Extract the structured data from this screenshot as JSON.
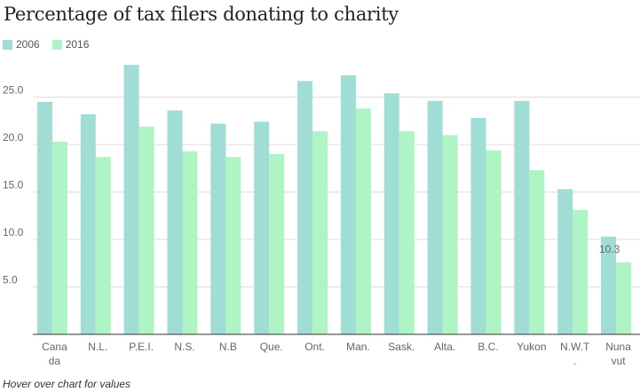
{
  "title": "Percentage of tax filers donating to charity",
  "legend": [
    {
      "name": "2006",
      "color": "#a0ddd4"
    },
    {
      "name": "2016",
      "color": "#aef4c4"
    }
  ],
  "note": "Hover over chart for values",
  "chart_data": {
    "type": "bar",
    "title": "Percentage of tax filers donating to charity",
    "categories": [
      [
        "Cana",
        "da"
      ],
      [
        "N.L."
      ],
      [
        "P.E.I."
      ],
      [
        "N.S."
      ],
      [
        "N.B"
      ],
      [
        "Que."
      ],
      [
        "Ont."
      ],
      [
        "Man."
      ],
      [
        "Sask."
      ],
      [
        "Alta."
      ],
      [
        "B.C."
      ],
      [
        "Yukon"
      ],
      [
        "N.W.T",
        "."
      ],
      [
        "Nuna",
        "vut"
      ]
    ],
    "series": [
      {
        "name": "2006",
        "color": "#a0ddd4",
        "values": [
          24.5,
          23.2,
          28.4,
          23.6,
          22.2,
          22.4,
          26.7,
          27.3,
          25.4,
          24.6,
          22.8,
          24.6,
          15.3,
          10.3
        ]
      },
      {
        "name": "2016",
        "color": "#aef4c4",
        "values": [
          20.3,
          18.7,
          21.9,
          19.3,
          18.7,
          19.0,
          21.4,
          23.8,
          21.4,
          21.0,
          19.4,
          17.3,
          13.1,
          7.6
        ]
      }
    ],
    "y_ticks": [
      "5.0",
      "10.0",
      "15.0",
      "20.0",
      "25.0"
    ],
    "ylim": [
      0,
      30
    ],
    "grid": true,
    "data_labels": [
      {
        "text": "10.3"
      }
    ],
    "xlabel": "",
    "ylabel": ""
  }
}
